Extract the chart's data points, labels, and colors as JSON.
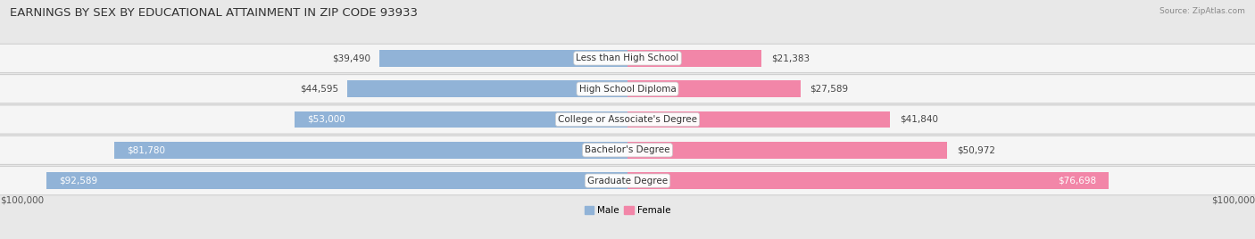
{
  "title": "EARNINGS BY SEX BY EDUCATIONAL ATTAINMENT IN ZIP CODE 93933",
  "source": "Source: ZipAtlas.com",
  "categories": [
    "Less than High School",
    "High School Diploma",
    "College or Associate's Degree",
    "Bachelor's Degree",
    "Graduate Degree"
  ],
  "male_values": [
    39490,
    44595,
    53000,
    81780,
    92589
  ],
  "female_values": [
    21383,
    27589,
    41840,
    50972,
    76698
  ],
  "max_value": 100000,
  "male_color": "#91b3d7",
  "female_color": "#f286a8",
  "background_color": "#e8e8e8",
  "row_bg_color": "#f5f5f5",
  "row_edge_color": "#d0d0d0",
  "axis_label": "$100,000",
  "legend_male": "Male",
  "legend_female": "Female",
  "title_fontsize": 9.5,
  "source_fontsize": 6.5,
  "value_fontsize": 7.5,
  "category_fontsize": 7.5,
  "axis_fontsize": 7.5
}
